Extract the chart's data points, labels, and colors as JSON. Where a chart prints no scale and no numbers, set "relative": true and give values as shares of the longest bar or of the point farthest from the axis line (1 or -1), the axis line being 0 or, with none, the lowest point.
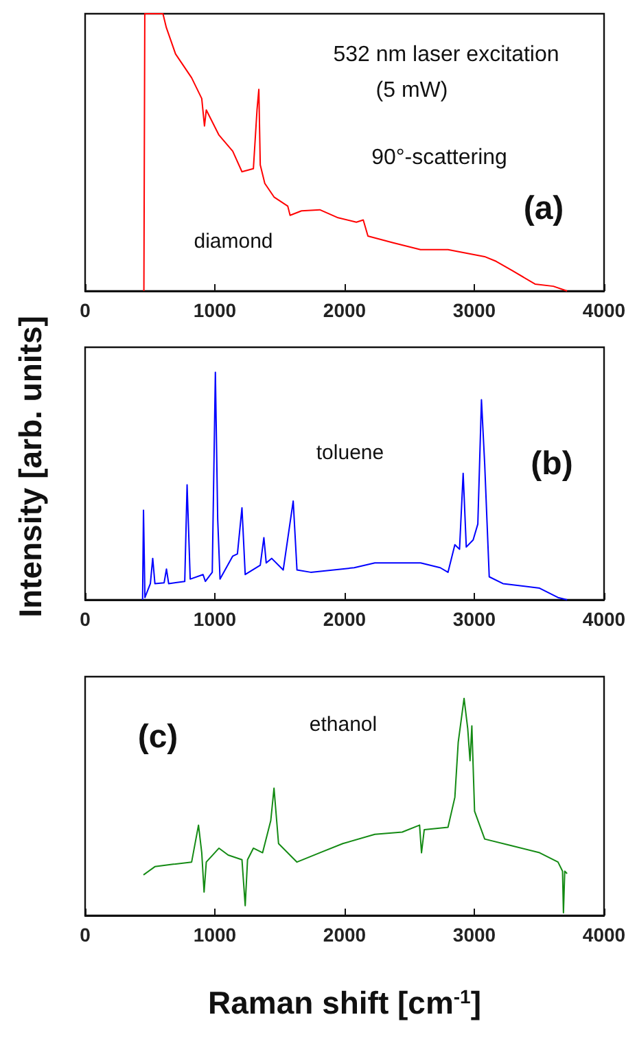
{
  "chart_data": [
    {
      "type": "line",
      "relative": true,
      "xlim": [
        0,
        4000
      ],
      "xticks": [
        0,
        1000,
        2000,
        3000,
        4000
      ],
      "tick_labels": "x",
      "grid": false,
      "marker": "none",
      "line_style": "solid",
      "annotations": [
        "532 nm laser excitation",
        "(5 mW)",
        "90°-scattering",
        "(a)",
        "diamond"
      ],
      "series": [
        {
          "color": "#ff0000",
          "x": [
            453,
            460,
            600,
            626,
            697,
            821,
            899,
            920,
            934,
            1032,
            1138,
            1209,
            1297,
            1325,
            1339,
            1350,
            1385,
            1456,
            1562,
            1580,
            1668,
            1809,
            1950,
            2091,
            2144,
            2180,
            2374,
            2585,
            2797,
            3079,
            3168,
            3291,
            3468,
            3609,
            3715
          ],
          "values": [
            0,
            1,
            1,
            0.95,
            0.855,
            0.769,
            0.694,
            0.595,
            0.653,
            0.562,
            0.504,
            0.43,
            0.441,
            0.653,
            0.727,
            0.455,
            0.388,
            0.339,
            0.306,
            0.273,
            0.289,
            0.293,
            0.264,
            0.248,
            0.256,
            0.198,
            0.174,
            0.149,
            0.149,
            0.124,
            0.107,
            0.074,
            0.025,
            0.017,
            0
          ]
        }
      ]
    },
    {
      "type": "line",
      "relative": true,
      "xlim": [
        0,
        4000
      ],
      "xticks": [
        0,
        1000,
        2000,
        3000,
        4000
      ],
      "tick_labels": "x",
      "grid": false,
      "marker": "none",
      "line_style": "solid",
      "ylabel": "Intensity [arb. units]",
      "annotations": [
        "toluene",
        "(b)"
      ],
      "series": [
        {
          "color": "#0000ff",
          "x": [
            443,
            450,
            461,
            503,
            521,
            538,
            609,
            627,
            644,
            768,
            786,
            810,
            909,
            927,
            980,
            1004,
            1022,
            1040,
            1138,
            1174,
            1209,
            1234,
            1350,
            1378,
            1396,
            1438,
            1527,
            1604,
            1633,
            1739,
            2074,
            2233,
            2586,
            2737,
            2797,
            2850,
            2886,
            2914,
            2938,
            2991,
            3027,
            3055,
            3080,
            3115,
            3221,
            3503,
            3645,
            3715
          ],
          "values": [
            0,
            0.394,
            0.01,
            0.071,
            0.182,
            0.071,
            0.075,
            0.135,
            0.071,
            0.081,
            0.505,
            0.091,
            0.111,
            0.081,
            0.121,
            1,
            0.354,
            0.091,
            0.192,
            0.202,
            0.404,
            0.111,
            0.152,
            0.273,
            0.162,
            0.182,
            0.131,
            0.434,
            0.131,
            0.121,
            0.141,
            0.162,
            0.162,
            0.141,
            0.121,
            0.242,
            0.222,
            0.556,
            0.232,
            0.263,
            0.333,
            0.879,
            0.596,
            0.101,
            0.071,
            0.051,
            0.01,
            0
          ]
        }
      ]
    },
    {
      "type": "line",
      "relative": true,
      "xlim": [
        0,
        4000
      ],
      "xticks": [
        0,
        1000,
        2000,
        3000,
        4000
      ],
      "tick_labels": "x",
      "grid": false,
      "marker": "none",
      "line_style": "solid",
      "xlabel": "Raman shift [cm$^{-1}$]",
      "annotations": [
        "(c)",
        "ethanol"
      ],
      "series": [
        {
          "color": "#138a13",
          "x": [
            450,
            538,
            680,
            821,
            874,
            899,
            917,
            934,
            1032,
            1103,
            1209,
            1234,
            1252,
            1297,
            1368,
            1431,
            1456,
            1491,
            1633,
            1809,
            1986,
            2233,
            2444,
            2578,
            2593,
            2614,
            2797,
            2850,
            2876,
            2921,
            2949,
            2967,
            2981,
            3002,
            3080,
            3291,
            3503,
            3645,
            3680,
            3687,
            3697,
            3715
          ],
          "values": [
            0.187,
            0.225,
            0.236,
            0.246,
            0.416,
            0.289,
            0.108,
            0.246,
            0.31,
            0.278,
            0.257,
            0.045,
            0.257,
            0.31,
            0.289,
            0.437,
            0.586,
            0.331,
            0.246,
            0.289,
            0.331,
            0.374,
            0.384,
            0.416,
            0.289,
            0.395,
            0.406,
            0.544,
            0.798,
            1,
            0.862,
            0.713,
            0.873,
            0.48,
            0.352,
            0.321,
            0.289,
            0.246,
            0.204,
            0.013,
            0.204,
            0.193
          ]
        }
      ]
    }
  ]
}
